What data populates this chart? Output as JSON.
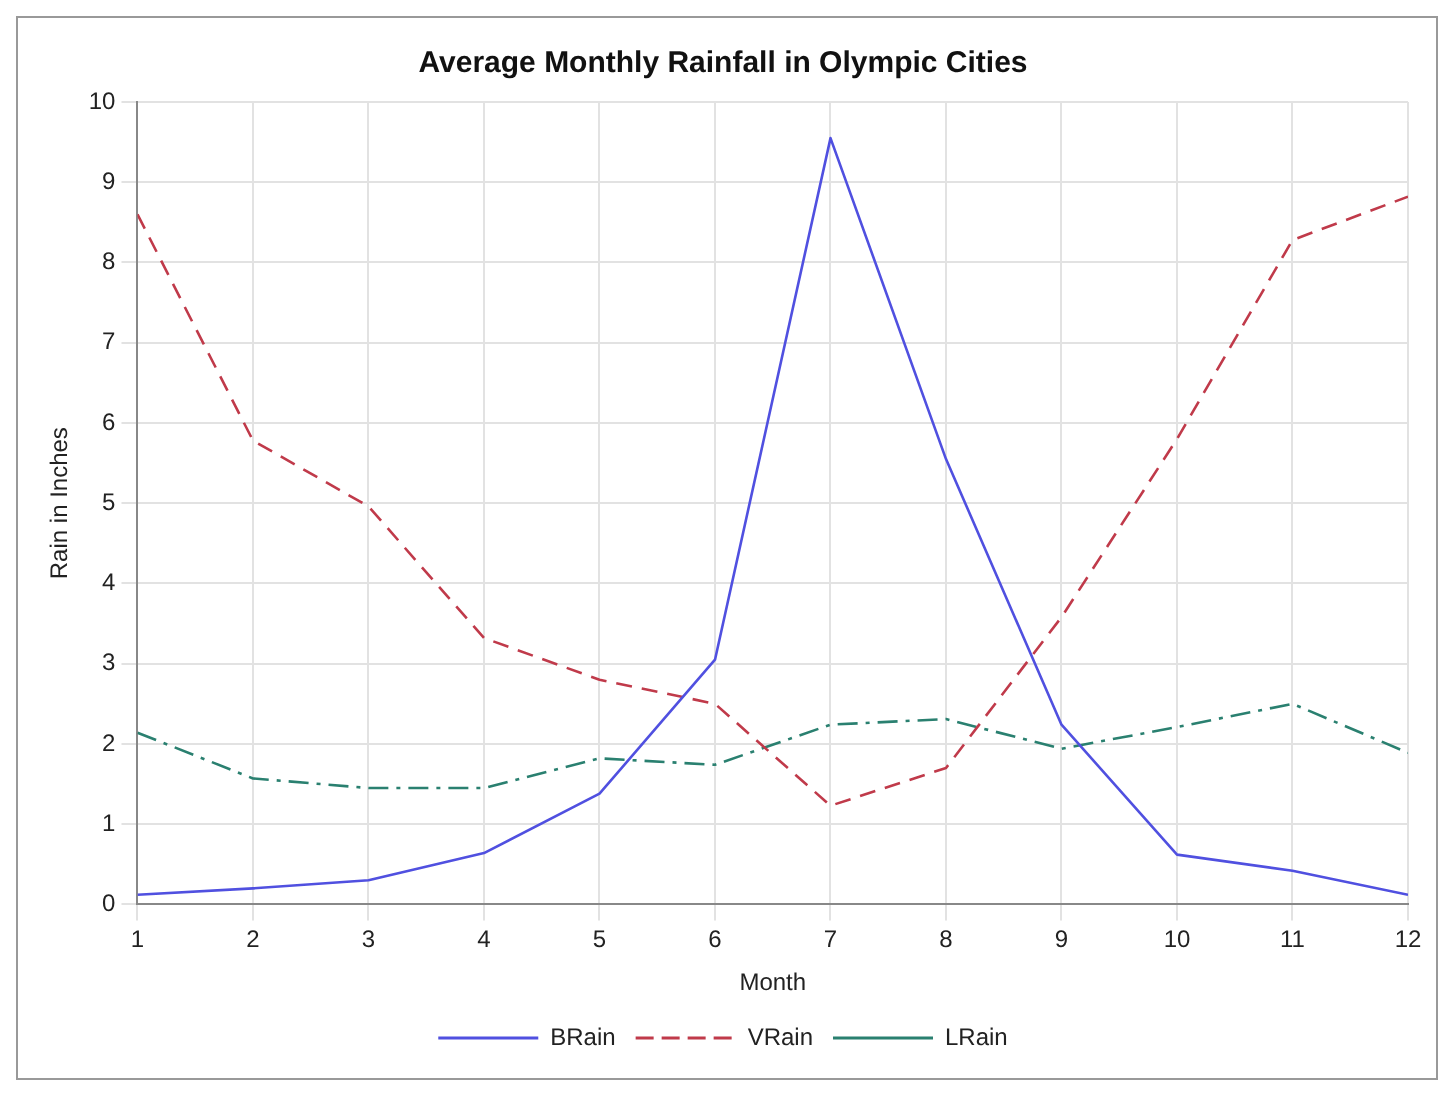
{
  "chart_data": {
    "type": "line",
    "title": "Average Monthly Rainfall in Olympic Cities",
    "xlabel": "Month",
    "ylabel": "Rain in Inches",
    "x": [
      1,
      2,
      3,
      4,
      5,
      6,
      7,
      8,
      9,
      10,
      11,
      12
    ],
    "xlim": [
      1,
      12
    ],
    "xticks": [
      1,
      2,
      3,
      4,
      5,
      6,
      7,
      8,
      9,
      10,
      11,
      12
    ],
    "ylim": [
      0,
      10
    ],
    "yticks": [
      0,
      1,
      2,
      3,
      4,
      5,
      6,
      7,
      8,
      9,
      10
    ],
    "grid": true,
    "legend": "bottom",
    "marker": "none",
    "series": [
      {
        "name": "BRain",
        "color": "#5050e0",
        "line_style": "solid",
        "values": [
          0.12,
          0.2,
          0.3,
          0.64,
          1.38,
          3.05,
          9.55,
          5.55,
          2.24,
          0.62,
          0.42,
          0.12
        ]
      },
      {
        "name": "VRain",
        "color": "#c03a4a",
        "line_style": "dashed",
        "values": [
          8.6,
          5.78,
          4.96,
          3.32,
          2.8,
          2.5,
          1.23,
          1.7,
          3.58,
          5.8,
          8.28,
          8.82
        ]
      },
      {
        "name": "LRain",
        "color": "#2a8070",
        "line_style": "dashdot",
        "values": [
          2.14,
          1.57,
          1.45,
          1.45,
          1.82,
          1.74,
          2.24,
          2.31,
          1.94,
          2.21,
          2.5,
          1.89
        ]
      }
    ]
  }
}
